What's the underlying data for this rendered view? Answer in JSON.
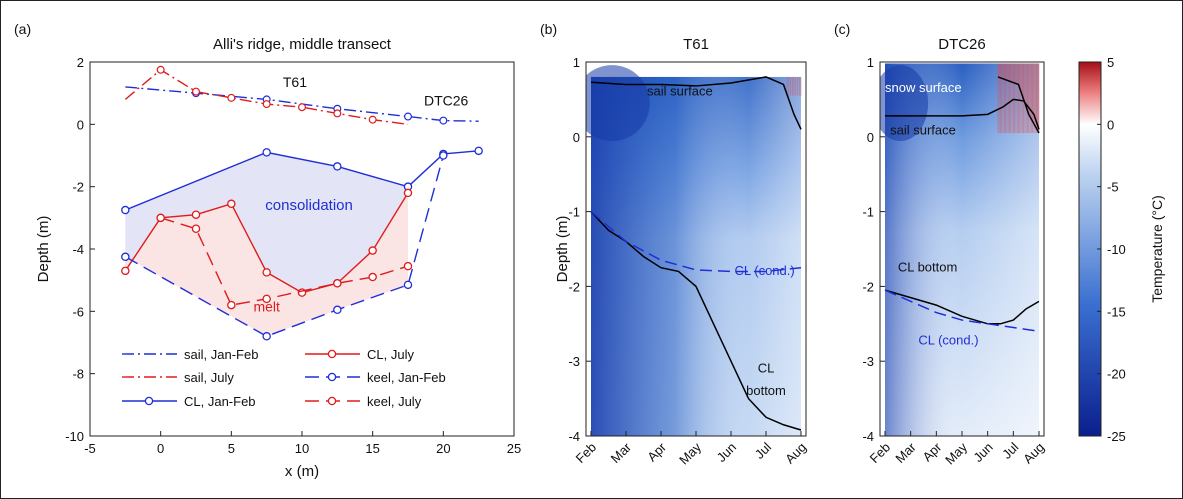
{
  "chart_data": [
    {
      "panel": "(a)",
      "type": "line",
      "title": "Alli's ridge, middle transect",
      "xlabel": "x (m)",
      "ylabel": "Depth (m)",
      "xlim": [
        -5,
        25
      ],
      "ylim": [
        -10,
        2
      ],
      "xticks": [
        -5,
        0,
        5,
        10,
        15,
        20,
        25
      ],
      "yticks": [
        -10,
        -8,
        -6,
        -4,
        -2,
        0,
        2
      ],
      "series": [
        {
          "name": "sail, Jan-Feb",
          "color": "#1f2fd6",
          "style": "dashdot",
          "marker": "none",
          "x": [
            -2.5,
            2.5,
            7.5,
            12.5,
            17.5,
            20,
            22.5
          ],
          "y": [
            1.2,
            1.0,
            0.8,
            0.5,
            0.25,
            0.12,
            0.1
          ]
        },
        {
          "name": "sail, July",
          "color": "#e01b1b",
          "style": "dashdot",
          "marker": "none",
          "x": [
            -2.5,
            0,
            2.5,
            5,
            7.5,
            10,
            12.5,
            15,
            17.5
          ],
          "y": [
            0.8,
            1.75,
            1.05,
            0.85,
            0.65,
            0.55,
            0.35,
            0.15,
            0.0
          ]
        },
        {
          "name": "CL, Jan-Feb",
          "color": "#1f2fd6",
          "style": "solid",
          "marker": "circle",
          "x": [
            -2.5,
            7.5,
            12.5,
            17.5,
            20,
            22.5
          ],
          "y": [
            -2.75,
            -0.9,
            -1.35,
            -2.0,
            -0.95,
            -0.85
          ]
        },
        {
          "name": "CL, July",
          "color": "#e01b1b",
          "style": "solid",
          "marker": "circle",
          "x": [
            -2.5,
            0,
            2.5,
            5,
            7.5,
            10,
            12.5,
            15,
            17.5
          ],
          "y": [
            -4.7,
            -3.0,
            -2.9,
            -2.55,
            -4.75,
            -5.4,
            -5.1,
            -4.05,
            -2.2
          ]
        },
        {
          "name": "keel, Jan-Feb",
          "color": "#1f2fd6",
          "style": "dashed",
          "marker": "circle",
          "x": [
            -2.5,
            7.5,
            12.5,
            17.5,
            20
          ],
          "y": [
            -4.25,
            -6.8,
            -5.95,
            -5.15,
            -1.0
          ]
        },
        {
          "name": "keel, July",
          "color": "#e01b1b",
          "style": "dashed",
          "marker": "circle",
          "x": [
            0,
            2.5,
            5,
            7.5,
            12.5,
            15,
            17.5
          ],
          "y": [
            -3.0,
            -3.35,
            -5.8,
            -5.6,
            -5.1,
            -4.9,
            -4.55
          ]
        }
      ],
      "annotations": [
        {
          "text": "T61",
          "x": 9.5,
          "y": 1.2,
          "color": "#111111"
        },
        {
          "text": "DTC26",
          "x": 20.2,
          "y": 0.6,
          "color": "#111111"
        },
        {
          "text": "consolidation",
          "x": 10.5,
          "y": -2.75,
          "color": "#1f2fd6"
        },
        {
          "text": "melt",
          "x": 7.5,
          "y": -6.0,
          "color": "#e01b1b"
        }
      ],
      "shaded_regions": [
        {
          "name": "consolidation",
          "color": "#e3e4f6"
        },
        {
          "name": "melt",
          "color": "#fbe1e1"
        }
      ],
      "legend_entries": [
        "sail, Jan-Feb",
        "CL, July",
        "sail, July",
        "keel, Jan-Feb",
        "CL, Jan-Feb",
        "keel, July"
      ],
      "legend_position": "bottom"
    },
    {
      "panel": "(b)",
      "type": "heatmap",
      "title": "T61",
      "xlabel": "",
      "ylabel": "Depth (m)",
      "ylim": [
        -4,
        1
      ],
      "yticks": [
        -4,
        -3,
        -2,
        -1,
        0,
        1
      ],
      "time_ticks": [
        "Feb",
        "Mar",
        "Apr",
        "May",
        "Jun",
        "Jul",
        "Aug"
      ],
      "lines": [
        {
          "name": "sail surface",
          "style": "solid",
          "color": "#000000",
          "t": [
            0,
            1,
            2,
            3,
            4,
            5,
            5.5,
            5.8,
            6.0
          ],
          "depth": [
            0.73,
            0.7,
            0.7,
            0.68,
            0.72,
            0.8,
            0.7,
            0.3,
            0.1
          ]
        },
        {
          "name": "CL bottom",
          "style": "solid",
          "color": "#000000",
          "t": [
            0,
            0.5,
            1,
            1.5,
            2,
            2.5,
            3,
            3.5,
            4,
            4.5,
            5,
            5.5,
            6.0
          ],
          "depth": [
            -1.0,
            -1.25,
            -1.4,
            -1.6,
            -1.75,
            -1.8,
            -2.0,
            -2.5,
            -3.0,
            -3.5,
            -3.75,
            -3.85,
            -3.92
          ]
        },
        {
          "name": "CL (cond.)",
          "style": "dashed",
          "color": "#1f2fd6",
          "t": [
            0,
            1,
            2,
            3,
            4,
            5,
            6.0
          ],
          "depth": [
            -1.0,
            -1.4,
            -1.65,
            -1.78,
            -1.8,
            -1.8,
            -1.75
          ]
        }
      ],
      "annotations": [
        {
          "text": "sail surface",
          "t": 1.6,
          "depth": 0.55,
          "color": "#111111"
        },
        {
          "text": "CL (cond.)",
          "t": 4.1,
          "depth": -1.85,
          "color": "#1f2fd6"
        },
        {
          "text": "CL",
          "t": 5.0,
          "depth": -3.15,
          "color": "#111111"
        },
        {
          "text": "bottom",
          "t": 5.0,
          "depth": -3.45,
          "color": "#111111"
        }
      ]
    },
    {
      "panel": "(c)",
      "type": "heatmap",
      "title": "DTC26",
      "xlabel": "",
      "ylabel": "",
      "ylim": [
        -4,
        1
      ],
      "yticks": [
        -4,
        -3,
        -2,
        -1,
        0,
        1
      ],
      "time_ticks": [
        "Feb",
        "Mar",
        "Apr",
        "May",
        "Jun",
        "Jul",
        "Aug"
      ],
      "lines": [
        {
          "name": "snow surface",
          "style": "solid",
          "color": "#000000",
          "t": [
            4.4,
            4.8,
            5.2,
            5.6,
            6.0
          ],
          "depth": [
            0.8,
            0.75,
            0.7,
            0.3,
            0.05
          ]
        },
        {
          "name": "sail surface",
          "style": "solid",
          "color": "#000000",
          "t": [
            0,
            1,
            2,
            3,
            4,
            4.6,
            5.0,
            5.4,
            5.8,
            6.0
          ],
          "depth": [
            0.28,
            0.28,
            0.28,
            0.28,
            0.3,
            0.4,
            0.5,
            0.48,
            0.3,
            0.1
          ]
        },
        {
          "name": "CL bottom",
          "style": "solid",
          "color": "#000000",
          "t": [
            0,
            1,
            2,
            3,
            4,
            4.5,
            5,
            5.5,
            6.0
          ],
          "depth": [
            -2.05,
            -2.15,
            -2.25,
            -2.4,
            -2.5,
            -2.5,
            -2.45,
            -2.3,
            -2.2
          ]
        },
        {
          "name": "CL (cond.)",
          "style": "dashed",
          "color": "#1f2fd6",
          "t": [
            0,
            1,
            2,
            3,
            4,
            5,
            6.0
          ],
          "depth": [
            -2.05,
            -2.2,
            -2.35,
            -2.45,
            -2.5,
            -2.55,
            -2.6
          ]
        }
      ],
      "annotations": [
        {
          "text": "snow surface",
          "t": 0.0,
          "depth": 0.6,
          "color": "#ffffff"
        },
        {
          "text": "sail surface",
          "t": 0.2,
          "depth": 0.03,
          "color": "#111111"
        },
        {
          "text": "CL bottom",
          "t": 0.5,
          "depth": -1.8,
          "color": "#111111"
        },
        {
          "text": "CL (cond.)",
          "t": 1.3,
          "depth": -2.78,
          "color": "#1f2fd6"
        }
      ]
    },
    {
      "type": "colorbar",
      "label": "Temperature (°C)",
      "range": [
        -25,
        5
      ],
      "ticks": [
        -25,
        -20,
        -15,
        -10,
        -5,
        0,
        5
      ],
      "colors": {
        "low": "#0a1f8f",
        "mid": "#ffffff",
        "high": "#a50f15"
      }
    }
  ]
}
